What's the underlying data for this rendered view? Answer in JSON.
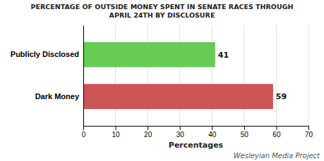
{
  "chart_data": {
    "type": "bar",
    "orientation": "horizontal",
    "title": "PERCENTAGE OF OUTSIDE MONEY SPENT IN SENATE RACES THROUGH\nAPRIL 24TH BY DISCLOSURE",
    "categories": [
      "Publicly Disclosed",
      "Dark Money"
    ],
    "values": [
      41,
      59
    ],
    "colors": [
      "#66cc55",
      "#cc5555"
    ],
    "xlabel": "Percentages",
    "xlim": [
      0,
      70
    ],
    "xticks": [
      0,
      10,
      20,
      30,
      40,
      50,
      60,
      70
    ],
    "grid": true,
    "data_labels": true,
    "annotations": [
      "Wesleyian Media Project"
    ]
  }
}
